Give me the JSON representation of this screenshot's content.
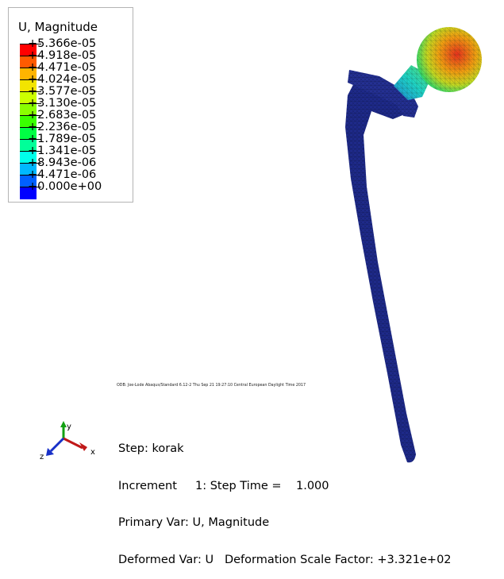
{
  "legend": {
    "title": "U, Magnitude",
    "entries": [
      {
        "label": "+5.366e-05",
        "color": "#ff0000"
      },
      {
        "label": "+4.918e-05",
        "color": "#ff5a00"
      },
      {
        "label": "+4.471e-05",
        "color": "#ffb400"
      },
      {
        "label": "+4.024e-05",
        "color": "#f2e400"
      },
      {
        "label": "+3.577e-05",
        "color": "#ccff00"
      },
      {
        "label": "+3.130e-05",
        "color": "#8aff00"
      },
      {
        "label": "+2.683e-05",
        "color": "#3aff00"
      },
      {
        "label": "+2.236e-05",
        "color": "#00ff44"
      },
      {
        "label": "+1.789e-05",
        "color": "#00ff99"
      },
      {
        "label": "+1.341e-05",
        "color": "#00ffea"
      },
      {
        "label": "+8.943e-06",
        "color": "#00b8ff"
      },
      {
        "label": "+4.471e-06",
        "color": "#0060ff"
      },
      {
        "label": "+0.000e+00",
        "color": "#0000ff"
      }
    ]
  },
  "odb_line": "ODB: Joe-Lode   Abaqus/Standard 6.12-2   Thu Sep 21 19:27:10 Central European Daylight Time 2017",
  "info": {
    "step": "Step: korak",
    "increment": "Increment     1: Step Time =    1.000",
    "primary_var": "Primary Var: U, Magnitude",
    "deformed_var": "Deformed Var: U   Deformation Scale Factor: +3.321e+02"
  },
  "triad": {
    "y_label": "y",
    "x_label": "x",
    "z_label": "z"
  },
  "colors": {
    "stem": "#1e2a8a",
    "mesh": "#0b1440",
    "neck_green": "#2fd96b",
    "head_red": "#e8301c"
  }
}
